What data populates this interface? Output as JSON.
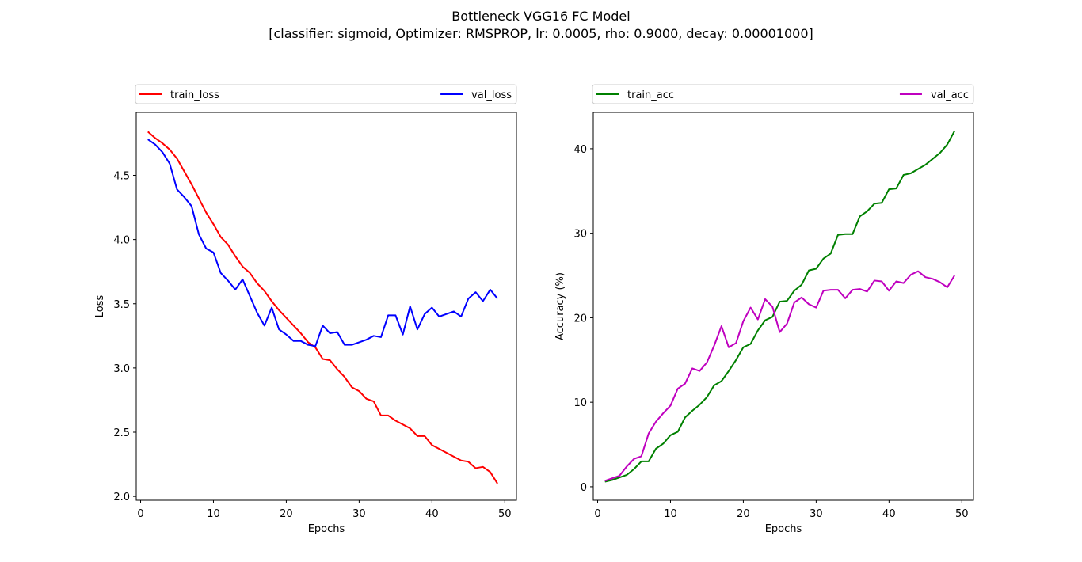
{
  "figure": {
    "title_line1": "Bottleneck VGG16 FC Model",
    "title_line2": "[classifier: sigmoid, Optimizer: RMSPROP, lr: 0.0005, rho: 0.9000, decay: 0.00001000]"
  },
  "chart_data": [
    {
      "type": "line",
      "xlabel": "Epochs",
      "ylabel": "Loss",
      "xlim": [
        -0.6,
        51.6
      ],
      "ylim": [
        1.97,
        4.99
      ],
      "xticks": [
        0,
        10,
        20,
        30,
        40,
        50
      ],
      "yticks": [
        2.0,
        2.5,
        3.0,
        3.5,
        4.0,
        4.5
      ],
      "ytick_labels": [
        "2.0",
        "2.5",
        "3.0",
        "3.5",
        "4.0",
        "4.5"
      ],
      "legend": "top, expanded above axes",
      "grid": false,
      "x": [
        1,
        2,
        3,
        4,
        5,
        6,
        7,
        8,
        9,
        10,
        11,
        12,
        13,
        14,
        15,
        16,
        17,
        18,
        19,
        20,
        21,
        22,
        23,
        24,
        25,
        26,
        27,
        28,
        29,
        30,
        31,
        32,
        33,
        34,
        35,
        36,
        37,
        38,
        39,
        40,
        41,
        42,
        43,
        44,
        45,
        46,
        47,
        48,
        49
      ],
      "series": [
        {
          "name": "train_loss",
          "color": "#ff0000",
          "values": [
            4.84,
            4.79,
            4.75,
            4.7,
            4.63,
            4.53,
            4.43,
            4.32,
            4.21,
            4.12,
            4.02,
            3.96,
            3.87,
            3.79,
            3.74,
            3.66,
            3.6,
            3.52,
            3.45,
            3.39,
            3.33,
            3.27,
            3.2,
            3.16,
            3.07,
            3.06,
            2.99,
            2.93,
            2.85,
            2.82,
            2.76,
            2.74,
            2.63,
            2.63,
            2.59,
            2.56,
            2.53,
            2.47,
            2.47,
            2.4,
            2.37,
            2.34,
            2.31,
            2.28,
            2.27,
            2.22,
            2.23,
            2.19,
            2.1
          ]
        },
        {
          "name": "val_loss",
          "color": "#0000ff",
          "values": [
            4.78,
            4.74,
            4.68,
            4.59,
            4.39,
            4.33,
            4.26,
            4.04,
            3.93,
            3.9,
            3.74,
            3.68,
            3.61,
            3.69,
            3.56,
            3.43,
            3.33,
            3.47,
            3.3,
            3.26,
            3.21,
            3.21,
            3.18,
            3.17,
            3.33,
            3.27,
            3.28,
            3.18,
            3.18,
            3.2,
            3.22,
            3.25,
            3.24,
            3.41,
            3.41,
            3.26,
            3.48,
            3.3,
            3.42,
            3.47,
            3.4,
            3.42,
            3.44,
            3.4,
            3.54,
            3.59,
            3.52,
            3.61,
            3.54
          ]
        }
      ]
    },
    {
      "type": "line",
      "xlabel": "Epochs",
      "ylabel": "Accuracy (%)",
      "xlim": [
        -0.6,
        51.6
      ],
      "ylim": [
        -1.6,
        44.3
      ],
      "xticks": [
        0,
        10,
        20,
        30,
        40,
        50
      ],
      "yticks": [
        0,
        10,
        20,
        30,
        40
      ],
      "ytick_labels": [
        "0",
        "10",
        "20",
        "30",
        "40"
      ],
      "legend": "top, expanded above axes",
      "grid": false,
      "x": [
        1,
        2,
        3,
        4,
        5,
        6,
        7,
        8,
        9,
        10,
        11,
        12,
        13,
        14,
        15,
        16,
        17,
        18,
        19,
        20,
        21,
        22,
        23,
        24,
        25,
        26,
        27,
        28,
        29,
        30,
        31,
        32,
        33,
        34,
        35,
        36,
        37,
        38,
        39,
        40,
        41,
        42,
        43,
        44,
        45,
        46,
        47,
        48,
        49
      ],
      "series": [
        {
          "name": "train_acc",
          "color": "#008000",
          "values": [
            0.6,
            0.8,
            1.1,
            1.4,
            2.1,
            3.0,
            3.0,
            4.5,
            5.1,
            6.1,
            6.5,
            8.2,
            9.0,
            9.7,
            10.6,
            12.0,
            12.5,
            13.7,
            15.0,
            16.5,
            16.9,
            18.5,
            19.7,
            20.1,
            21.9,
            22.0,
            23.2,
            23.9,
            25.6,
            25.8,
            27.0,
            27.6,
            29.8,
            29.9,
            29.9,
            32.0,
            32.6,
            33.5,
            33.6,
            35.2,
            35.3,
            36.9,
            37.1,
            37.6,
            38.1,
            38.8,
            39.5,
            40.5,
            42.1
          ]
        },
        {
          "name": "val_acc",
          "color": "#bf00bf",
          "values": [
            0.7,
            1.0,
            1.3,
            2.4,
            3.3,
            3.6,
            6.3,
            7.7,
            8.7,
            9.6,
            11.6,
            12.2,
            14.0,
            13.7,
            14.7,
            16.7,
            19.0,
            16.5,
            17.0,
            19.6,
            21.2,
            19.8,
            22.2,
            21.3,
            18.3,
            19.3,
            21.8,
            22.4,
            21.6,
            21.2,
            23.2,
            23.3,
            23.3,
            22.3,
            23.3,
            23.4,
            23.1,
            24.4,
            24.3,
            23.2,
            24.3,
            24.1,
            25.1,
            25.5,
            24.8,
            24.6,
            24.2,
            23.6,
            25.0
          ]
        }
      ]
    }
  ]
}
